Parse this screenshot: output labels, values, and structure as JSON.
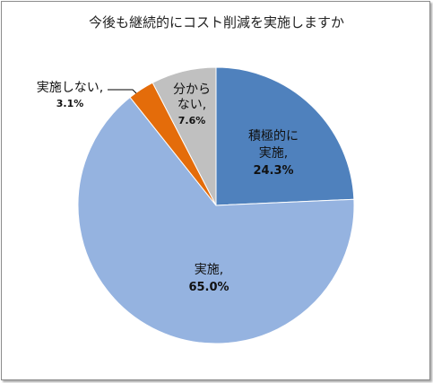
{
  "chart_data": {
    "type": "pie",
    "title": "今後も継続的にコスト削減を実施しますか",
    "start_angle_deg": 0,
    "direction": "clockwise",
    "slices": [
      {
        "label_lines": [
          "積極的に",
          "実施,"
        ],
        "value": 24.3,
        "value_text": "24.3%",
        "color": "#4f81bd"
      },
      {
        "label_lines": [
          "実施,"
        ],
        "value": 65.0,
        "value_text": "65.0%",
        "color": "#95b3e0"
      },
      {
        "label_lines": [
          "実施しない,"
        ],
        "value": 3.1,
        "value_text": "3.1%",
        "color": "#e46c0a"
      },
      {
        "label_lines": [
          "分から",
          "ない,"
        ],
        "value": 7.6,
        "value_text": "7.6%",
        "color": "#c0c0c0"
      }
    ]
  }
}
